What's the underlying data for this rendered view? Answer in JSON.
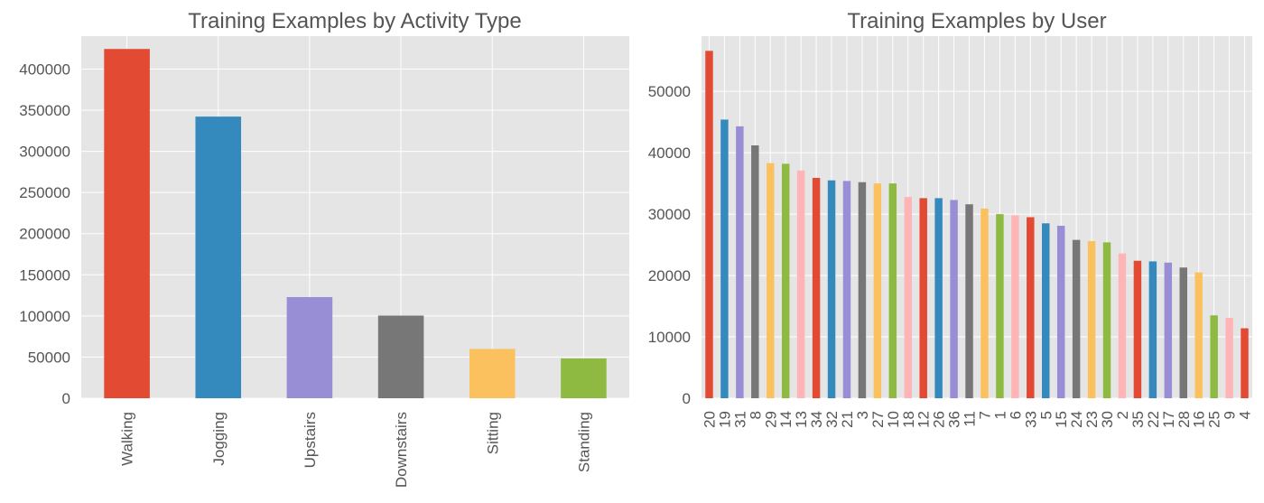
{
  "palette": [
    "#E24A33",
    "#348ABD",
    "#988ED5",
    "#777777",
    "#FBC15E",
    "#8EBA42",
    "#FFB5B8"
  ],
  "plot_background": "#E5E5E5",
  "chart_data": [
    {
      "type": "bar",
      "title": "Training Examples by Activity Type",
      "xlabel": "",
      "ylabel": "",
      "grid": true,
      "ylim": [
        0,
        440000
      ],
      "yticks": [
        0,
        50000,
        100000,
        150000,
        200000,
        250000,
        300000,
        350000,
        400000
      ],
      "ytick_labels": [
        "0",
        "50000",
        "100000",
        "150000",
        "200000",
        "250000",
        "300000",
        "350000",
        "400000"
      ],
      "categories": [
        "Walking",
        "Jogging",
        "Upstairs",
        "Downstairs",
        "Sitting",
        "Standing"
      ],
      "values": [
        424400,
        342200,
        122900,
        100400,
        59900,
        48400
      ],
      "bar_colors": [
        "#E24A33",
        "#348ABD",
        "#988ED5",
        "#777777",
        "#FBC15E",
        "#8EBA42"
      ]
    },
    {
      "type": "bar",
      "title": "Training Examples by User",
      "xlabel": "",
      "ylabel": "",
      "grid": true,
      "ylim": [
        0,
        59000
      ],
      "yticks": [
        0,
        10000,
        20000,
        30000,
        40000,
        50000
      ],
      "ytick_labels": [
        "0",
        "10000",
        "20000",
        "30000",
        "40000",
        "50000"
      ],
      "categories": [
        "20",
        "19",
        "31",
        "8",
        "29",
        "14",
        "13",
        "34",
        "32",
        "21",
        "3",
        "27",
        "10",
        "18",
        "12",
        "26",
        "36",
        "11",
        "7",
        "1",
        "6",
        "33",
        "5",
        "15",
        "24",
        "23",
        "30",
        "2",
        "35",
        "22",
        "17",
        "28",
        "16",
        "25",
        "9",
        "4"
      ],
      "values": [
        56600,
        45400,
        44300,
        41200,
        38300,
        38200,
        37100,
        35900,
        35500,
        35400,
        35200,
        35000,
        35000,
        32800,
        32600,
        32600,
        32300,
        31600,
        30900,
        30000,
        29800,
        29500,
        28500,
        28100,
        25800,
        25600,
        25400,
        23600,
        22400,
        22300,
        22100,
        21300,
        20500,
        13500,
        13100,
        11400
      ],
      "bar_colors": [
        "#E24A33",
        "#348ABD",
        "#988ED5",
        "#777777",
        "#FBC15E",
        "#8EBA42",
        "#FFB5B8"
      ]
    }
  ]
}
